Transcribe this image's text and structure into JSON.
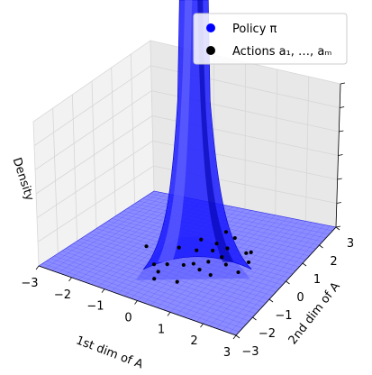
{
  "chart_data": {
    "type": "surface3d",
    "title": "",
    "xlabel": "1st dim of A",
    "ylabel": "2nd dim of A",
    "zlabel": "Density",
    "xlim": [
      -3,
      3
    ],
    "ylim": [
      -3,
      3
    ],
    "x_ticks": [
      "−3",
      "−2",
      "−1",
      "0",
      "1",
      "2",
      "3"
    ],
    "y_ticks": [
      "−3",
      "−2",
      "−1",
      "0",
      "1",
      "2",
      "3"
    ],
    "grid": true,
    "legend": {
      "placement": "top-right",
      "entries": [
        {
          "label": "Policy π",
          "color": "#0000ff"
        },
        {
          "label": "Actions a₁, …, aₘ",
          "color": "#000000"
        }
      ]
    },
    "surface": {
      "name": "Policy π",
      "color": "#0000ff",
      "peak": [
        0,
        0
      ],
      "shape": "sharp peak at origin"
    },
    "actions": {
      "name": "Actions a₁, …, aₘ",
      "color": "#000000",
      "points": [
        [
          0.6,
          -0.6
        ],
        [
          0.3,
          -0.4
        ],
        [
          0.1,
          -0.6
        ],
        [
          -0.3,
          -0.8
        ],
        [
          0.8,
          0.3
        ],
        [
          1.1,
          0.0
        ],
        [
          1.6,
          -0.2
        ],
        [
          0.3,
          0.9
        ],
        [
          1.3,
          0.8
        ],
        [
          1.4,
          0.9
        ],
        [
          -0.3,
          -1.3
        ],
        [
          -0.6,
          -1.0
        ],
        [
          0.2,
          1.6
        ],
        [
          0.0,
          0.3
        ],
        [
          0.7,
          0.8
        ],
        [
          -0.2,
          -1.7
        ],
        [
          -1.3,
          -0.2
        ],
        [
          1.6,
          0.4
        ],
        [
          0.6,
          -0.1
        ],
        [
          0.6,
          1.4
        ],
        [
          -0.2,
          0.9
        ],
        [
          0.4,
          -1.5
        ],
        [
          -0.5,
          0.2
        ],
        [
          0.4,
          0.5
        ],
        [
          1.0,
          -0.7
        ]
      ]
    }
  }
}
